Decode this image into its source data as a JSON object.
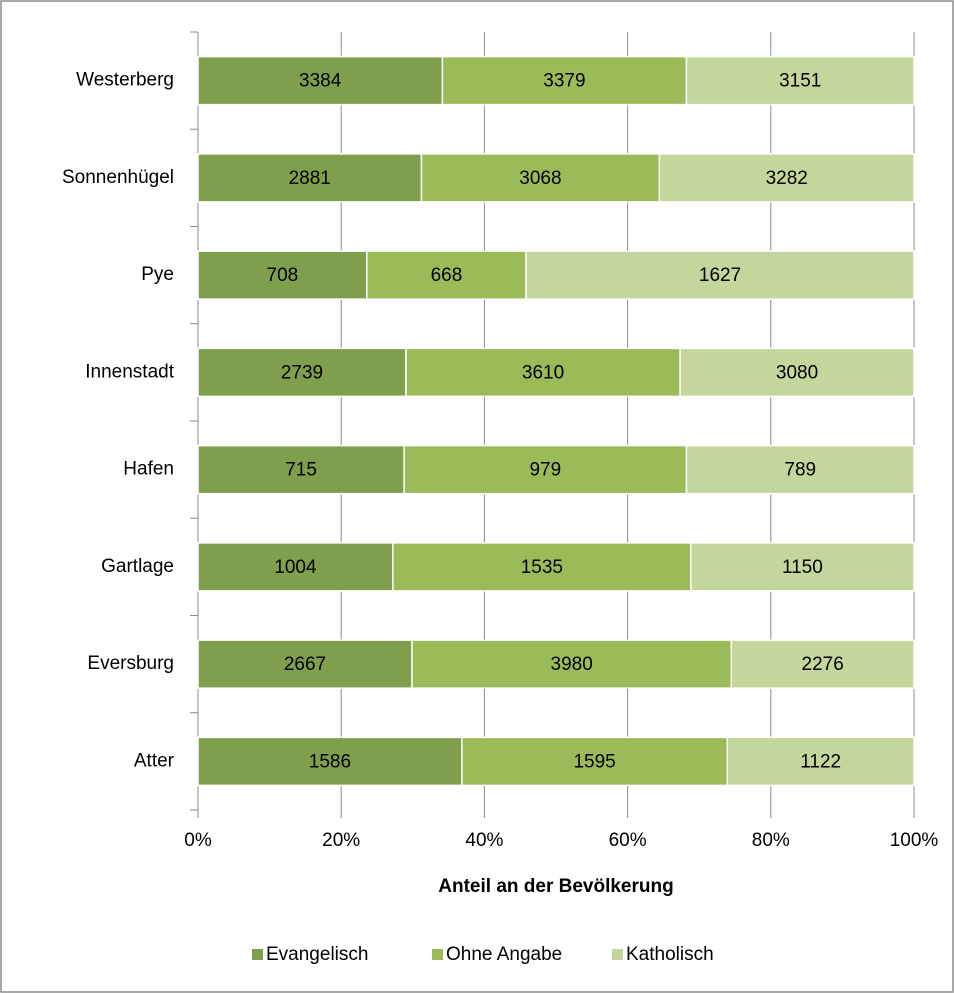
{
  "chart_data": {
    "type": "bar",
    "orientation": "horizontal",
    "stacking": "percent",
    "x_axis_label": "Anteil an der Bevölkerung",
    "categories": [
      "Westerberg",
      "Sonnenhügel",
      "Pye",
      "Innenstadt",
      "Hafen",
      "Gartlage",
      "Eversburg",
      "Atter"
    ],
    "series": [
      {
        "name": "Evangelisch",
        "color": "#7f9f4c",
        "values": [
          3384,
          2881,
          708,
          2739,
          715,
          1004,
          2667,
          1586
        ]
      },
      {
        "name": "Ohne Angabe",
        "color": "#9bbb59",
        "values": [
          3379,
          3068,
          668,
          3610,
          979,
          1535,
          3980,
          1595
        ]
      },
      {
        "name": "Katholisch",
        "color": "#c3d69b",
        "values": [
          3151,
          3282,
          1627,
          3080,
          789,
          1150,
          2276,
          1122
        ]
      }
    ],
    "xlim": [
      0,
      100
    ],
    "xticks": [
      {
        "value": 0,
        "label": "0%"
      },
      {
        "value": 20,
        "label": "20%"
      },
      {
        "value": 40,
        "label": "40%"
      },
      {
        "value": 60,
        "label": "60%"
      },
      {
        "value": 80,
        "label": "80%"
      },
      {
        "value": 100,
        "label": "100%"
      }
    ],
    "grid": true,
    "legend": "bottom"
  }
}
